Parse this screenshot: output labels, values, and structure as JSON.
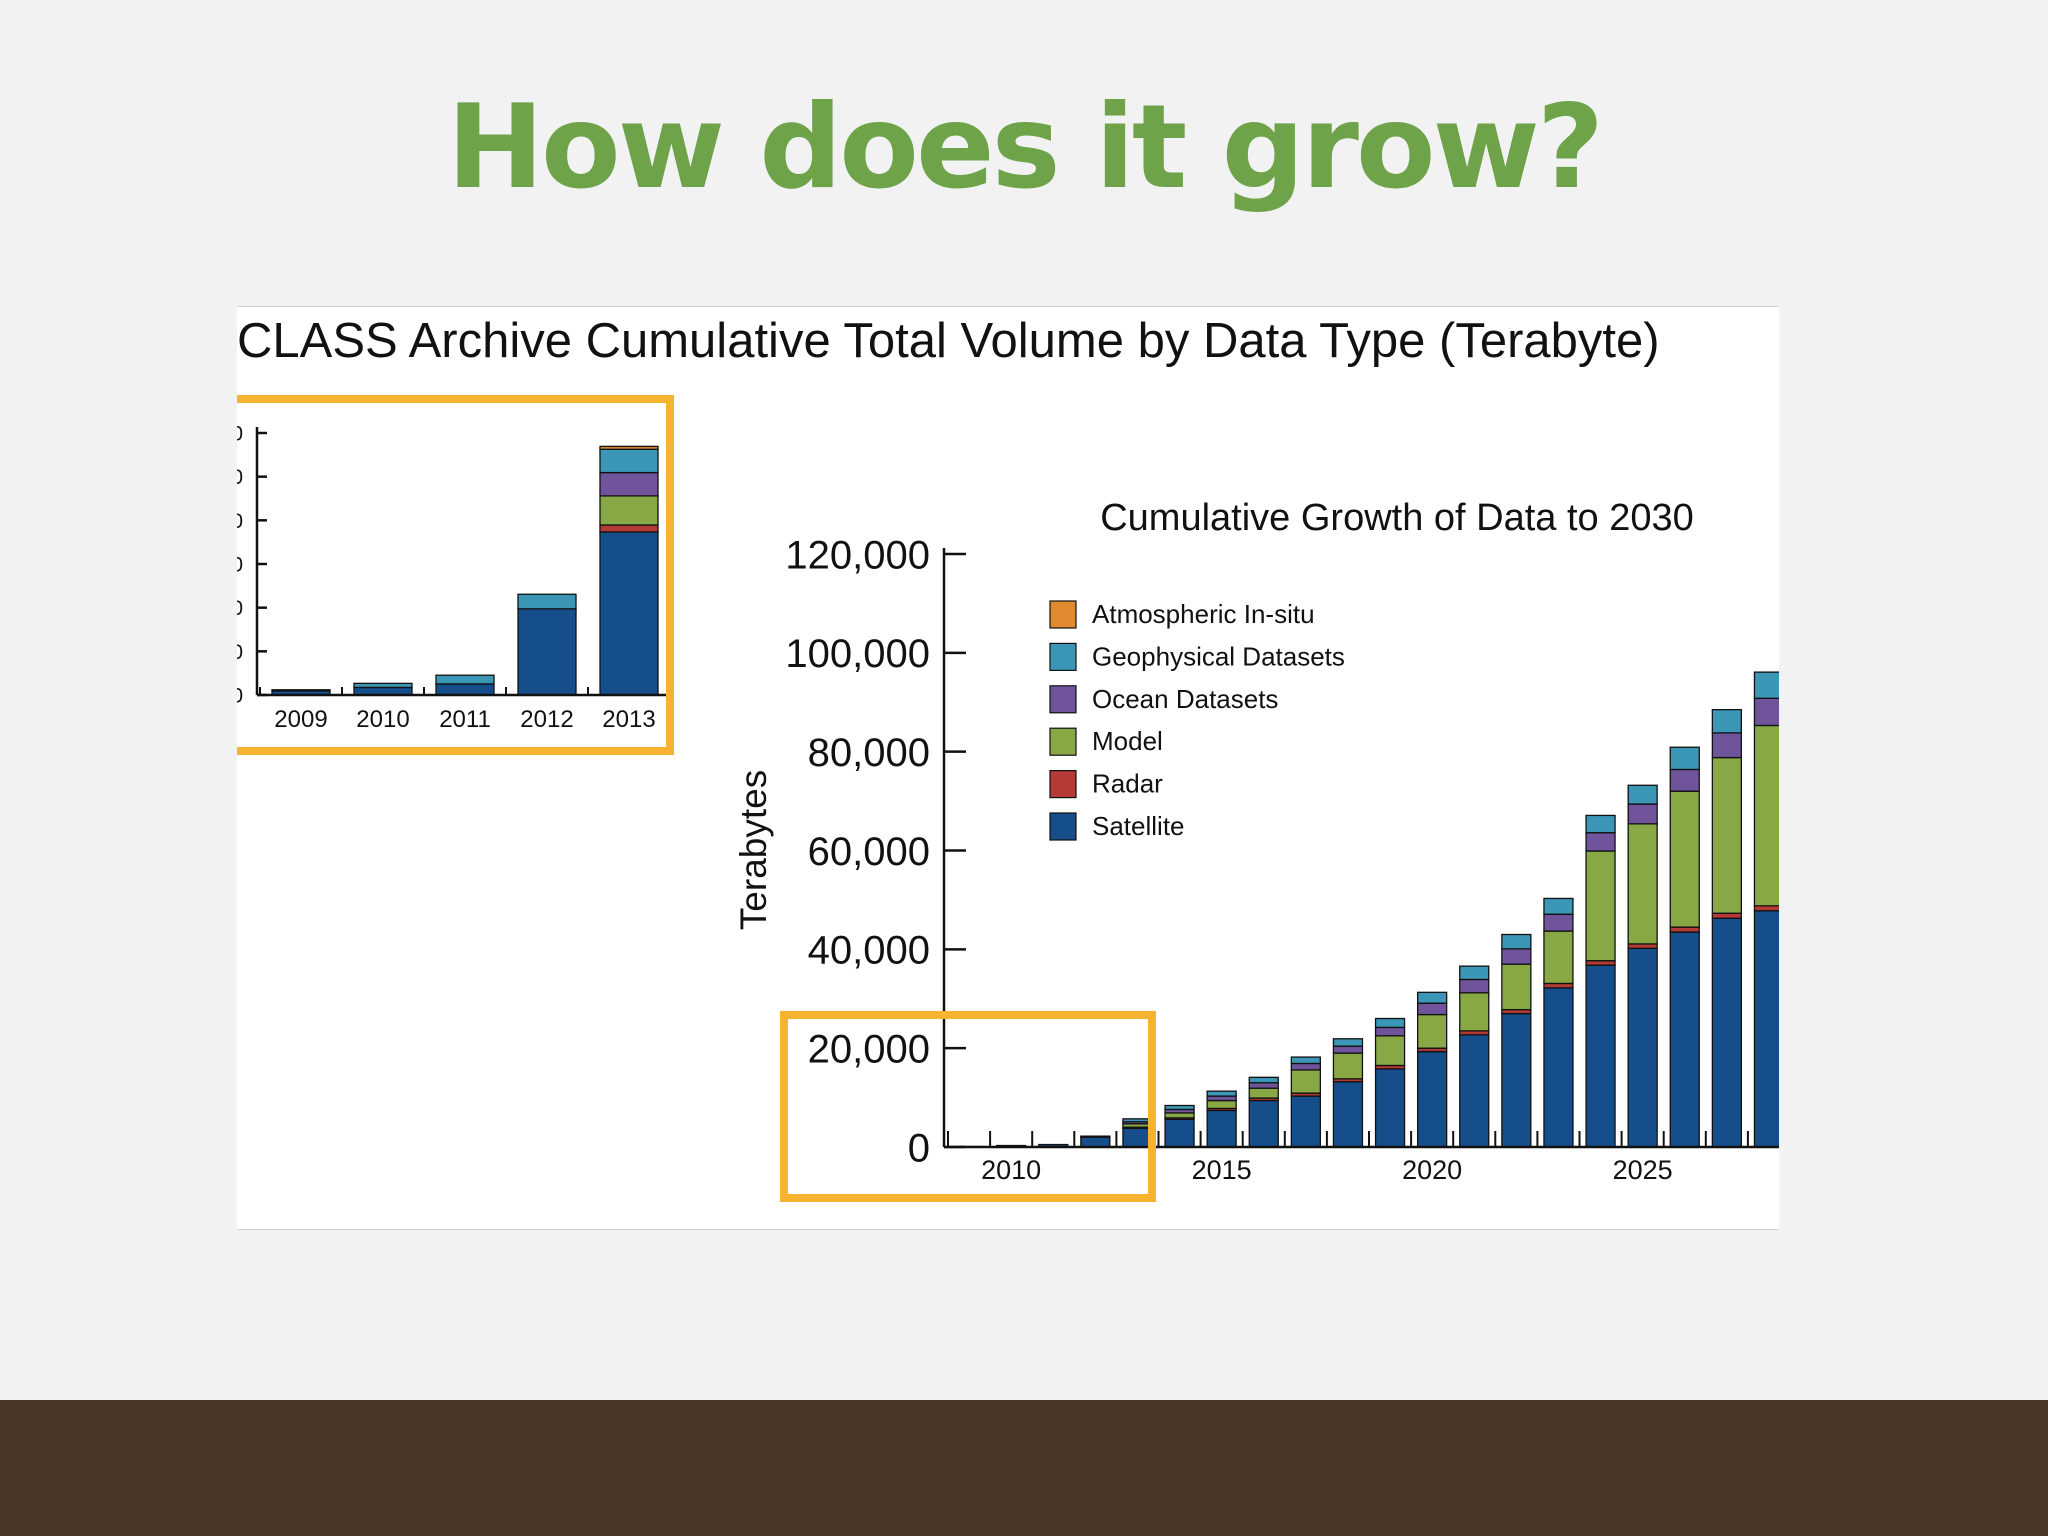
{
  "slide": {
    "title": "How does it grow?",
    "title_color": "#6ea34a",
    "footer_color": "#4a3628"
  },
  "figure": {
    "title": "CLASS Archive Cumulative Total Volume by Data Type (Terabyte)",
    "highlight_color": "#f7b330"
  },
  "chart_data": [
    {
      "type": "bar",
      "stacked": true,
      "title": "",
      "categories": [
        "2009",
        "2010",
        "2011",
        "2012",
        "2013"
      ],
      "series": [
        {
          "name": "Satellite",
          "color": "#154e8a",
          "values": [
            700,
            1300,
            1900,
            14800,
            28000
          ]
        },
        {
          "name": "Radar",
          "color": "#b33a35",
          "values": [
            0,
            0,
            0,
            0,
            1200
          ]
        },
        {
          "name": "Model",
          "color": "#88a845",
          "values": [
            0,
            0,
            0,
            0,
            5000
          ]
        },
        {
          "name": "Ocean Datasets",
          "color": "#6f549c",
          "values": [
            0,
            0,
            0,
            0,
            4000
          ]
        },
        {
          "name": "Geophysical Datasets",
          "color": "#3b97b5",
          "values": [
            200,
            700,
            1500,
            2500,
            4000
          ]
        },
        {
          "name": "Atmospheric In-situ",
          "color": "#e08a30",
          "values": [
            0,
            0,
            0,
            0,
            500
          ]
        }
      ],
      "ylim": [
        0,
        45000
      ],
      "y_ticks": [
        "0",
        "0",
        "0",
        "0",
        "0",
        "0",
        "0"
      ],
      "xlabel": "",
      "ylabel": "",
      "grid": false
    },
    {
      "type": "bar",
      "stacked": true,
      "title": "Cumulative Growth of Data to 2030",
      "ylabel": "Terabytes",
      "xlabel": "",
      "ylim": [
        0,
        120000
      ],
      "y_ticks": [
        "0",
        "20,000",
        "40,000",
        "60,000",
        "80,000",
        "100,000",
        "120,000"
      ],
      "x_ticks": [
        "2010",
        "2015",
        "2020",
        "2025"
      ],
      "categories": [
        "2009",
        "2010",
        "2011",
        "2012",
        "2013",
        "2014",
        "2015",
        "2016",
        "2017",
        "2018",
        "2019",
        "2020",
        "2021",
        "2022",
        "2023",
        "2024",
        "2025",
        "2026",
        "2027",
        "2028"
      ],
      "legend_position": "upper-left",
      "grid": false,
      "series": [
        {
          "name": "Satellite",
          "color": "#154e8a",
          "values": [
            100,
            300,
            500,
            2000,
            3800,
            5600,
            7400,
            9400,
            10300,
            13200,
            15800,
            19300,
            22700,
            27000,
            32200,
            36800,
            40200,
            43500,
            46300,
            47800
          ]
        },
        {
          "name": "Radar",
          "color": "#b33a35",
          "values": [
            0,
            0,
            0,
            0,
            200,
            300,
            400,
            500,
            600,
            600,
            700,
            700,
            800,
            800,
            900,
            900,
            900,
            1000,
            1000,
            1000
          ]
        },
        {
          "name": "Model",
          "color": "#88a845",
          "values": [
            0,
            0,
            0,
            0,
            700,
            1000,
            1600,
            2000,
            4700,
            5200,
            6000,
            6800,
            7700,
            9200,
            10600,
            22200,
            24300,
            27500,
            31500,
            36500
          ]
        },
        {
          "name": "Ocean Datasets",
          "color": "#6f549c",
          "values": [
            0,
            0,
            0,
            0,
            400,
            700,
            900,
            1100,
            1300,
            1400,
            1700,
            2300,
            2700,
            3100,
            3400,
            3700,
            4000,
            4400,
            5000,
            5500
          ]
        },
        {
          "name": "Geophysical Datasets",
          "color": "#3b97b5",
          "values": [
            0,
            0,
            0,
            200,
            600,
            800,
            1000,
            1100,
            1300,
            1500,
            1800,
            2200,
            2700,
            2900,
            3200,
            3500,
            3800,
            4500,
            4700,
            5300
          ]
        },
        {
          "name": "Atmospheric In-situ",
          "color": "#e08a30",
          "values": [
            0,
            0,
            0,
            0,
            0,
            0,
            0,
            0,
            0,
            0,
            0,
            0,
            0,
            0,
            0,
            0,
            0,
            0,
            0,
            0
          ]
        }
      ],
      "legend_order": [
        "Atmospheric In-situ",
        "Geophysical Datasets",
        "Ocean Datasets",
        "Model",
        "Radar",
        "Satellite"
      ]
    }
  ]
}
